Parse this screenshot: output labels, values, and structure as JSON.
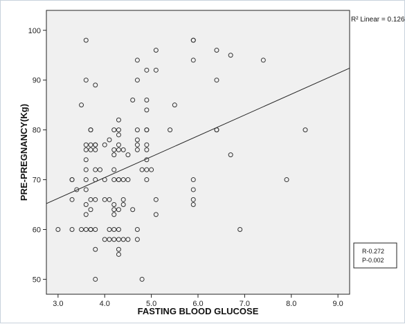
{
  "chart_data": {
    "type": "scatter",
    "title": "",
    "xlabel": "FASTING BLOOD GLUCOSE",
    "ylabel": "PRE-PREGNANCY(Kg)",
    "xlim": [
      2.75,
      9.25
    ],
    "ylim": [
      47,
      104
    ],
    "x_ticks": [
      "3.0",
      "4.0",
      "5.0",
      "6.0",
      "7.0",
      "8.0",
      "9.0"
    ],
    "y_ticks": [
      "50",
      "60",
      "70",
      "80",
      "90",
      "100"
    ],
    "grid": false,
    "plot_background": "#f0f0f0",
    "marker": "open-circle",
    "fit_line": {
      "label": "Linear",
      "r2_label": "R² Linear = 0.126",
      "x": [
        2.75,
        9.25
      ],
      "y": [
        65.2,
        92.4
      ]
    },
    "stats_box": [
      "R-0.272",
      "P-0.002"
    ],
    "points": [
      {
        "x": 3.0,
        "y": 60
      },
      {
        "x": 3.3,
        "y": 70
      },
      {
        "x": 3.3,
        "y": 70
      },
      {
        "x": 3.3,
        "y": 66
      },
      {
        "x": 3.3,
        "y": 60
      },
      {
        "x": 3.4,
        "y": 68
      },
      {
        "x": 3.5,
        "y": 85
      },
      {
        "x": 3.5,
        "y": 60
      },
      {
        "x": 3.6,
        "y": 98
      },
      {
        "x": 3.6,
        "y": 90
      },
      {
        "x": 3.6,
        "y": 77
      },
      {
        "x": 3.6,
        "y": 76
      },
      {
        "x": 3.6,
        "y": 74
      },
      {
        "x": 3.6,
        "y": 72
      },
      {
        "x": 3.6,
        "y": 70
      },
      {
        "x": 3.6,
        "y": 68
      },
      {
        "x": 3.6,
        "y": 65
      },
      {
        "x": 3.6,
        "y": 63
      },
      {
        "x": 3.6,
        "y": 60
      },
      {
        "x": 3.7,
        "y": 80
      },
      {
        "x": 3.7,
        "y": 80
      },
      {
        "x": 3.7,
        "y": 77
      },
      {
        "x": 3.7,
        "y": 76
      },
      {
        "x": 3.7,
        "y": 66
      },
      {
        "x": 3.7,
        "y": 64
      },
      {
        "x": 3.7,
        "y": 60
      },
      {
        "x": 3.7,
        "y": 60
      },
      {
        "x": 3.8,
        "y": 89
      },
      {
        "x": 3.8,
        "y": 77
      },
      {
        "x": 3.8,
        "y": 77
      },
      {
        "x": 3.8,
        "y": 76
      },
      {
        "x": 3.8,
        "y": 72
      },
      {
        "x": 3.8,
        "y": 70
      },
      {
        "x": 3.8,
        "y": 66
      },
      {
        "x": 3.8,
        "y": 60
      },
      {
        "x": 3.8,
        "y": 56
      },
      {
        "x": 3.8,
        "y": 50
      },
      {
        "x": 3.9,
        "y": 72
      },
      {
        "x": 4.0,
        "y": 77
      },
      {
        "x": 4.0,
        "y": 70
      },
      {
        "x": 4.0,
        "y": 66
      },
      {
        "x": 4.0,
        "y": 58
      },
      {
        "x": 4.1,
        "y": 78
      },
      {
        "x": 4.1,
        "y": 66
      },
      {
        "x": 4.1,
        "y": 60
      },
      {
        "x": 4.1,
        "y": 58
      },
      {
        "x": 4.2,
        "y": 80
      },
      {
        "x": 4.2,
        "y": 76
      },
      {
        "x": 4.2,
        "y": 75
      },
      {
        "x": 4.2,
        "y": 72
      },
      {
        "x": 4.2,
        "y": 70
      },
      {
        "x": 4.2,
        "y": 65
      },
      {
        "x": 4.2,
        "y": 64
      },
      {
        "x": 4.2,
        "y": 63
      },
      {
        "x": 4.2,
        "y": 60
      },
      {
        "x": 4.2,
        "y": 58
      },
      {
        "x": 4.3,
        "y": 82
      },
      {
        "x": 4.3,
        "y": 80
      },
      {
        "x": 4.3,
        "y": 79
      },
      {
        "x": 4.3,
        "y": 77
      },
      {
        "x": 4.3,
        "y": 76
      },
      {
        "x": 4.3,
        "y": 70
      },
      {
        "x": 4.3,
        "y": 70
      },
      {
        "x": 4.3,
        "y": 64
      },
      {
        "x": 4.3,
        "y": 60
      },
      {
        "x": 4.3,
        "y": 58
      },
      {
        "x": 4.3,
        "y": 56
      },
      {
        "x": 4.3,
        "y": 55
      },
      {
        "x": 4.4,
        "y": 76
      },
      {
        "x": 4.4,
        "y": 70
      },
      {
        "x": 4.4,
        "y": 66
      },
      {
        "x": 4.4,
        "y": 65
      },
      {
        "x": 4.4,
        "y": 58
      },
      {
        "x": 4.5,
        "y": 75
      },
      {
        "x": 4.5,
        "y": 70
      },
      {
        "x": 4.5,
        "y": 58
      },
      {
        "x": 4.6,
        "y": 86
      },
      {
        "x": 4.6,
        "y": 64
      },
      {
        "x": 4.7,
        "y": 94
      },
      {
        "x": 4.7,
        "y": 90
      },
      {
        "x": 4.7,
        "y": 80
      },
      {
        "x": 4.7,
        "y": 78
      },
      {
        "x": 4.7,
        "y": 77
      },
      {
        "x": 4.7,
        "y": 76
      },
      {
        "x": 4.7,
        "y": 60
      },
      {
        "x": 4.7,
        "y": 58
      },
      {
        "x": 4.8,
        "y": 72
      },
      {
        "x": 4.8,
        "y": 50
      },
      {
        "x": 4.9,
        "y": 92
      },
      {
        "x": 4.9,
        "y": 86
      },
      {
        "x": 4.9,
        "y": 84
      },
      {
        "x": 4.9,
        "y": 80
      },
      {
        "x": 4.9,
        "y": 80
      },
      {
        "x": 4.9,
        "y": 77
      },
      {
        "x": 4.9,
        "y": 76
      },
      {
        "x": 4.9,
        "y": 74
      },
      {
        "x": 4.9,
        "y": 72
      },
      {
        "x": 4.9,
        "y": 70
      },
      {
        "x": 5.0,
        "y": 72
      },
      {
        "x": 5.1,
        "y": 96
      },
      {
        "x": 5.1,
        "y": 92
      },
      {
        "x": 5.1,
        "y": 66
      },
      {
        "x": 5.1,
        "y": 63
      },
      {
        "x": 5.4,
        "y": 80
      },
      {
        "x": 5.5,
        "y": 85
      },
      {
        "x": 5.9,
        "y": 98
      },
      {
        "x": 5.9,
        "y": 98
      },
      {
        "x": 5.9,
        "y": 94
      },
      {
        "x": 5.9,
        "y": 70
      },
      {
        "x": 5.9,
        "y": 68
      },
      {
        "x": 5.9,
        "y": 66
      },
      {
        "x": 5.9,
        "y": 65
      },
      {
        "x": 6.4,
        "y": 96
      },
      {
        "x": 6.4,
        "y": 90
      },
      {
        "x": 6.4,
        "y": 80
      },
      {
        "x": 6.4,
        "y": 80
      },
      {
        "x": 6.7,
        "y": 95
      },
      {
        "x": 6.7,
        "y": 75
      },
      {
        "x": 6.9,
        "y": 60
      },
      {
        "x": 7.4,
        "y": 94
      },
      {
        "x": 7.9,
        "y": 70
      },
      {
        "x": 8.3,
        "y": 80
      }
    ]
  }
}
